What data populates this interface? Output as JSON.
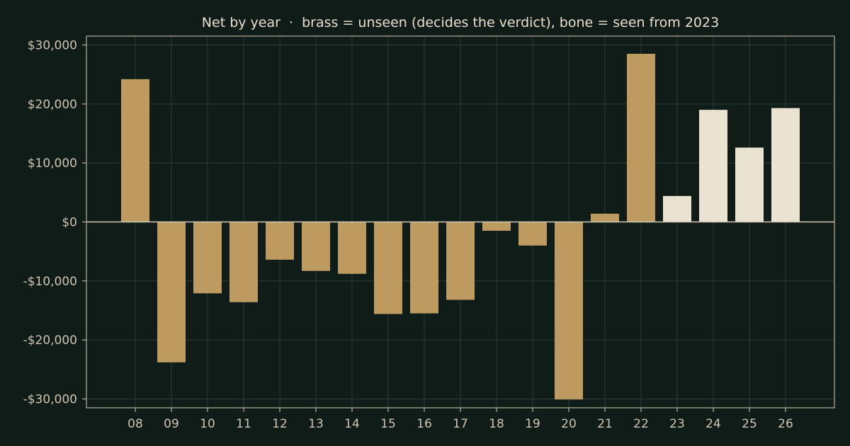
{
  "chart_data": {
    "type": "bar",
    "title": "Net by year  ·  brass = unseen (decides the verdict), bone = seen from 2023",
    "xlabel": "",
    "ylabel": "",
    "categories": [
      "08",
      "09",
      "10",
      "11",
      "12",
      "13",
      "14",
      "15",
      "16",
      "17",
      "18",
      "19",
      "20",
      "21",
      "22",
      "23",
      "24",
      "25",
      "26"
    ],
    "values": [
      24200,
      -23800,
      -12100,
      -13600,
      -6400,
      -8300,
      -8800,
      -15600,
      -15500,
      -13200,
      -1500,
      -4000,
      -30100,
      1400,
      28500,
      4400,
      19000,
      12600,
      19300
    ],
    "seen": [
      false,
      false,
      false,
      false,
      false,
      false,
      false,
      false,
      false,
      false,
      false,
      false,
      false,
      false,
      false,
      true,
      true,
      true,
      true
    ],
    "ylim": [
      -31500,
      31500
    ],
    "yticks": [
      30000,
      20000,
      10000,
      0,
      -10000,
      -20000,
      -30000
    ],
    "ytick_labels": [
      "$30,000",
      "$20,000",
      "$10,000",
      "$0",
      "-$10,000",
      "-$20,000",
      "-$30,000"
    ],
    "grid": true,
    "colors": {
      "unseen": "#bd9a5f",
      "seen": "#ebe3d2",
      "background": "#0f1c17",
      "axis": "#b7b09d",
      "grid": "#2f3d36",
      "zero_line": "#cfc8b4"
    }
  }
}
